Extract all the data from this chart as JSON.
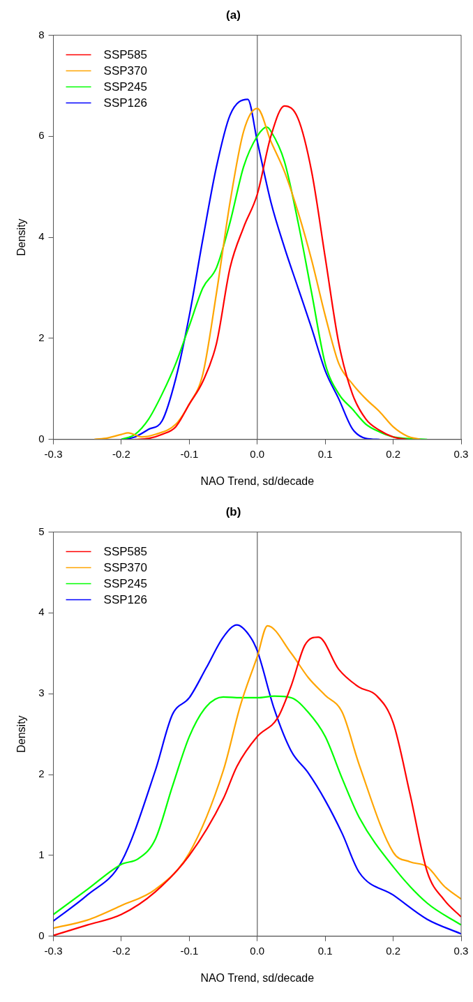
{
  "chart_data": [
    {
      "type": "line",
      "title": "(a)",
      "xlabel": "NAO Trend, sd/decade",
      "ylabel": "Density",
      "xlim": [
        -0.3,
        0.3
      ],
      "xticks": [
        -0.3,
        -0.2,
        -0.1,
        {
          "value": 0,
          "label": "0.0"
        },
        0.1,
        0.2,
        0.3
      ],
      "ylim": [
        0,
        8
      ],
      "yticks": [
        0,
        2,
        4,
        6,
        8
      ],
      "grid": false,
      "legend": "top left",
      "marker": "none",
      "line_style": "solid",
      "ref_lines": [
        {
          "axis": "x",
          "value": 0,
          "color": "#808080"
        }
      ],
      "series": [
        {
          "name": "SSP585",
          "color": "#ff0000",
          "x": [
            -0.18,
            -0.16,
            -0.14,
            -0.12,
            -0.1,
            -0.08,
            -0.06,
            -0.04,
            -0.02,
            0,
            0.02,
            0.04,
            0.06,
            0.08,
            0.1,
            0.12,
            0.14,
            0.16,
            0.18,
            0.2,
            0.22
          ],
          "values": [
            0,
            0.02,
            0.1,
            0.25,
            0.7,
            1.15,
            1.9,
            3.4,
            4.2,
            4.85,
            6.0,
            6.6,
            6.35,
            5.3,
            3.6,
            1.9,
            0.9,
            0.4,
            0.18,
            0.05,
            0
          ]
        },
        {
          "name": "SSP370",
          "color": "#ffa500",
          "x": [
            -0.24,
            -0.22,
            -0.2,
            -0.19,
            -0.17,
            -0.15,
            -0.12,
            -0.1,
            -0.08,
            -0.06,
            -0.04,
            -0.02,
            0,
            0.02,
            0.04,
            0.06,
            0.08,
            0.1,
            0.12,
            0.14,
            0.16,
            0.18,
            0.2,
            0.22,
            0.24
          ],
          "values": [
            0,
            0.03,
            0.1,
            0.13,
            0.05,
            0.1,
            0.3,
            0.7,
            1.3,
            2.9,
            4.7,
            6.1,
            6.55,
            5.9,
            5.3,
            4.5,
            3.55,
            2.45,
            1.5,
            1.1,
            0.8,
            0.55,
            0.25,
            0.07,
            0
          ]
        },
        {
          "name": "SSP245",
          "color": "#00ff00",
          "x": [
            -0.2,
            -0.18,
            -0.16,
            -0.14,
            -0.12,
            -0.1,
            -0.08,
            -0.06,
            -0.04,
            -0.02,
            0,
            0.014,
            0.02,
            0.04,
            0.06,
            0.08,
            0.1,
            0.12,
            0.14,
            0.16,
            0.18,
            0.2,
            0.22,
            0.25
          ],
          "values": [
            0,
            0.1,
            0.4,
            0.9,
            1.5,
            2.25,
            3.0,
            3.4,
            4.3,
            5.4,
            6.0,
            6.18,
            6.1,
            5.5,
            4.3,
            2.9,
            1.5,
            0.9,
            0.6,
            0.3,
            0.15,
            0.05,
            0.02,
            0
          ]
        },
        {
          "name": "SSP126",
          "color": "#0000ff",
          "x": [
            -0.2,
            -0.18,
            -0.16,
            -0.14,
            -0.12,
            -0.1,
            -0.08,
            -0.06,
            -0.04,
            -0.014,
            0,
            0.02,
            0.04,
            0.06,
            0.08,
            0.1,
            0.12,
            0.14,
            0.16,
            0.18
          ],
          "values": [
            0,
            0.05,
            0.2,
            0.37,
            1.2,
            2.45,
            3.97,
            5.4,
            6.42,
            6.73,
            5.9,
            4.7,
            3.8,
            3.0,
            2.2,
            1.36,
            0.8,
            0.21,
            0.02,
            0
          ]
        }
      ]
    },
    {
      "type": "line",
      "title": "(b)",
      "xlabel": "NAO Trend, sd/decade",
      "ylabel": "Density",
      "xlim": [
        -0.3,
        0.3
      ],
      "xticks": [
        -0.3,
        -0.2,
        -0.1,
        {
          "value": 0,
          "label": "0.0"
        },
        0.1,
        0.2,
        0.3
      ],
      "ylim": [
        0,
        5
      ],
      "yticks": [
        0,
        1,
        2,
        3,
        4,
        5
      ],
      "grid": false,
      "legend": "top left",
      "marker": "none",
      "line_style": "solid",
      "ref_lines": [
        {
          "axis": "x",
          "value": 0,
          "color": "#808080"
        }
      ],
      "series": [
        {
          "name": "SSP585",
          "color": "#ff0000",
          "x": [
            -0.3,
            -0.25,
            -0.2,
            -0.15,
            -0.1,
            -0.05,
            -0.03,
            0,
            0.03,
            0.05,
            0.07,
            0.09,
            0.12,
            0.15,
            0.175,
            0.2,
            0.225,
            0.25,
            0.275,
            0.3
          ],
          "values": [
            0.01,
            0.14,
            0.27,
            0.55,
            1.0,
            1.7,
            2.1,
            2.47,
            2.7,
            3.1,
            3.6,
            3.7,
            3.3,
            3.08,
            2.98,
            2.64,
            1.75,
            0.8,
            0.45,
            0.24
          ]
        },
        {
          "name": "SSP370",
          "color": "#ffa500",
          "x": [
            -0.3,
            -0.25,
            -0.2,
            -0.15,
            -0.1,
            -0.05,
            -0.025,
            0,
            0.015,
            0.05,
            0.075,
            0.1,
            0.125,
            0.15,
            0.2,
            0.225,
            0.25,
            0.275,
            0.3
          ],
          "values": [
            0.1,
            0.2,
            0.38,
            0.58,
            1.03,
            2.05,
            2.85,
            3.46,
            3.84,
            3.5,
            3.2,
            2.98,
            2.77,
            2.12,
            1.04,
            0.92,
            0.86,
            0.62,
            0.46
          ]
        },
        {
          "name": "SSP245",
          "color": "#00ff00",
          "x": [
            -0.3,
            -0.25,
            -0.2,
            -0.175,
            -0.15,
            -0.125,
            -0.1,
            -0.075,
            -0.05,
            -0.025,
            0,
            0.025,
            0.05,
            0.075,
            0.1,
            0.125,
            0.15,
            0.2,
            0.25,
            0.3
          ],
          "values": [
            0.27,
            0.58,
            0.89,
            0.96,
            1.2,
            1.85,
            2.47,
            2.84,
            2.96,
            2.95,
            2.95,
            2.97,
            2.95,
            2.77,
            2.47,
            1.95,
            1.47,
            0.86,
            0.41,
            0.14
          ]
        },
        {
          "name": "SSP126",
          "color": "#0000ff",
          "x": [
            -0.3,
            -0.25,
            -0.2,
            -0.15,
            -0.125,
            -0.1,
            -0.075,
            -0.05,
            -0.03,
            -0.01,
            0,
            0.025,
            0.05,
            0.075,
            0.1,
            0.125,
            0.15,
            0.2,
            0.25,
            0.3
          ],
          "values": [
            0.19,
            0.51,
            0.92,
            2.05,
            2.74,
            2.95,
            3.32,
            3.7,
            3.85,
            3.7,
            3.53,
            2.81,
            2.29,
            2.02,
            1.68,
            1.27,
            0.79,
            0.51,
            0.21,
            0.03
          ]
        }
      ]
    }
  ]
}
